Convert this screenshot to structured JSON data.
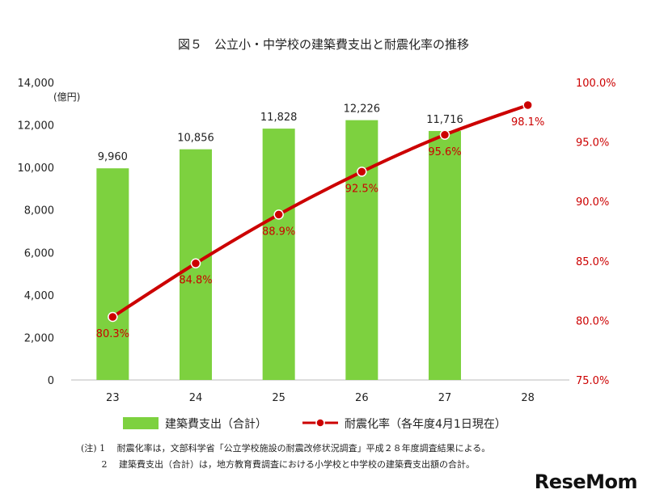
{
  "chart_data": {
    "type": "bar",
    "title": "図５　公立小・中学校の建築費支出と耐震化率の推移",
    "categories": [
      "23",
      "24",
      "25",
      "26",
      "27",
      "28"
    ],
    "y_left": {
      "unit_label": "(億円)",
      "range": [
        0,
        14000
      ],
      "ticks": [
        "0",
        "2,000",
        "4,000",
        "6,000",
        "8,000",
        "10,000",
        "12,000",
        "14,000"
      ]
    },
    "y_right": {
      "range": [
        75,
        100
      ],
      "ticks": [
        "75.0%",
        "80.0%",
        "85.0%",
        "90.0%",
        "95.0%",
        "100.0%"
      ]
    },
    "series": [
      {
        "name": "建築費支出（合計）",
        "type": "bar",
        "axis": "left",
        "color": "#7dd13f",
        "values": [
          9960,
          10856,
          11828,
          12226,
          11716,
          null
        ],
        "labels": [
          "9,960",
          "10,856",
          "11,828",
          "12,226",
          "11,716",
          ""
        ]
      },
      {
        "name": "耐震化率（各年度4月1日現在）",
        "type": "line",
        "axis": "right",
        "color": "#cc0000",
        "values": [
          80.3,
          84.8,
          88.9,
          92.5,
          95.6,
          98.1
        ],
        "labels": [
          "80.3%",
          "84.8%",
          "88.9%",
          "92.5%",
          "95.6%",
          "98.1%"
        ]
      }
    ],
    "legend_position": "bottom",
    "grid": false
  },
  "notes": {
    "note1": "(注) 1　 耐震化率は，文部科学省「公立学校施設の耐震改修状況調査」平成２８年度調査結果による。",
    "note2": "　　 2　 建築費支出（合計）は，地方教育費調査における小学校と中学校の建築費支出額の合計。"
  },
  "watermark": "ReseMom"
}
